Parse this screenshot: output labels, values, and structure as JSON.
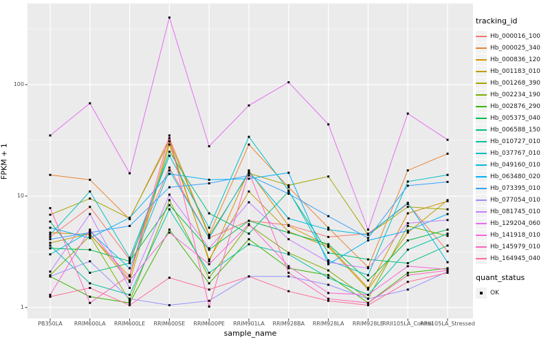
{
  "figure": {
    "background": "#ffffff",
    "y_axis": {
      "title": "FPKM + 1",
      "scale": "log10"
    },
    "x_axis": {
      "title": "sample_name"
    },
    "legend": {
      "tracking_title": "tracking_id",
      "quant_title": "quant_status",
      "quant_items": [
        {
          "label": "OK",
          "shape": "black-square"
        }
      ]
    }
  },
  "colors": {
    "panel_bg": "#EBEBEB",
    "grid": "#FFFFFF",
    "tick_mark": "#333333",
    "tick_text": "#4D4D4D",
    "axis_title": "#000000",
    "legend_key_bg": "#F2F2F2",
    "point": "#000000"
  },
  "chart_data": {
    "type": "line",
    "title": "",
    "xlabel": "sample_name",
    "ylabel": "FPKM + 1",
    "y_scale": "log10",
    "ylim": [
      0.8,
      535
    ],
    "grid": true,
    "legend_position": "right",
    "point_marker": "small black square (quant_status = OK) at every data point",
    "y_tick_labels": [
      "1",
      "10",
      "100"
    ],
    "y_tick_values": [
      1,
      10,
      100
    ],
    "y_minor_values": [
      3.1623,
      31.623,
      316.23
    ],
    "categories": [
      "PB350LA",
      "RRIM600LA",
      "RRIM600LE",
      "RRIM600SE",
      "RRIM600PE",
      "RRIM901LA",
      "RRIM928BA",
      "RRIM928LA",
      "RRIM928LE",
      "RRII105LA_Control",
      "RRII105LA_Stressed"
    ],
    "series": [
      {
        "name": "Hb_000016_100",
        "color": "#F8766D",
        "values": [
          4.3,
          8.0,
          2.7,
          18,
          4.2,
          6.0,
          5.5,
          4.3,
          4.6,
          8.5,
          3.2
        ]
      },
      {
        "name": "Hb_000025_340",
        "color": "#EA8331",
        "values": [
          15.5,
          14.0,
          6.2,
          33,
          4.5,
          29,
          12.0,
          5.2,
          2.3,
          17.0,
          24.0
        ]
      },
      {
        "name": "Hb_000836_120",
        "color": "#D89000",
        "values": [
          4.7,
          4.5,
          1.9,
          31,
          2.6,
          17.0,
          5.4,
          3.6,
          1.5,
          7.0,
          9.0
        ]
      },
      {
        "name": "Hb_001183_010",
        "color": "#C09B00",
        "values": [
          3.8,
          4.6,
          1.7,
          29,
          2.7,
          11.0,
          4.8,
          3.5,
          1.45,
          4.7,
          9.2
        ]
      },
      {
        "name": "Hb_001268_390",
        "color": "#A3A500",
        "values": [
          6.8,
          9.5,
          6.3,
          31,
          4.4,
          16.0,
          12.5,
          15.0,
          4.5,
          8.0,
          7.6
        ]
      },
      {
        "name": "Hb_002234_190",
        "color": "#7CAE00",
        "values": [
          1.95,
          4.4,
          1.15,
          9.2,
          1.85,
          5.5,
          3.1,
          2.15,
          1.2,
          5.4,
          4.4
        ]
      },
      {
        "name": "Hb_002876_290",
        "color": "#39B600",
        "values": [
          1.9,
          1.25,
          1.1,
          5.0,
          1.65,
          4.1,
          2.25,
          1.95,
          1.1,
          2.05,
          2.25
        ]
      },
      {
        "name": "Hb_005375_040",
        "color": "#00BB4E",
        "values": [
          3.4,
          3.3,
          2.6,
          8.3,
          3.3,
          6.0,
          4.7,
          3.7,
          1.75,
          4.0,
          5.0
        ]
      },
      {
        "name": "Hb_006588_150",
        "color": "#00BF7D",
        "values": [
          5.9,
          2.05,
          2.5,
          25,
          7.0,
          4.6,
          11.0,
          3.1,
          2.7,
          2.5,
          3.6
        ]
      },
      {
        "name": "Hb_010727_010",
        "color": "#00C1A3",
        "values": [
          3.6,
          1.65,
          1.3,
          7.6,
          2.05,
          3.7,
          3.0,
          1.85,
          1.3,
          3.3,
          4.6
        ]
      },
      {
        "name": "Hb_037767_010",
        "color": "#00BFC4",
        "values": [
          4.5,
          11.0,
          2.8,
          23,
          5.2,
          34,
          11.2,
          2.65,
          1.95,
          13.5,
          15.5
        ]
      },
      {
        "name": "Hb_049160_010",
        "color": "#00BAE0",
        "values": [
          3.0,
          4.8,
          2.25,
          17,
          4.2,
          16.5,
          6.3,
          5.0,
          4.5,
          8.7,
          2.55
        ]
      },
      {
        "name": "Hb_063480_020",
        "color": "#00B0F6",
        "values": [
          5.2,
          4.2,
          6.4,
          15.8,
          14.0,
          14.3,
          16.2,
          2.45,
          4.0,
          4.9,
          6.9
        ]
      },
      {
        "name": "Hb_073395_010",
        "color": "#35A2FF",
        "values": [
          4.1,
          4.7,
          5.4,
          12.0,
          13.0,
          15.3,
          10.5,
          6.6,
          4.2,
          12.4,
          13.4
        ]
      },
      {
        "name": "Hb_077054_010",
        "color": "#9590FF",
        "values": [
          1.9,
          2.6,
          1.2,
          1.05,
          1.15,
          1.9,
          1.9,
          1.6,
          1.2,
          1.45,
          2.1
        ]
      },
      {
        "name": "Hb_081745_010",
        "color": "#C77CFF",
        "values": [
          2.1,
          6.9,
          1.5,
          10.3,
          3.4,
          8.8,
          4.1,
          2.55,
          2.25,
          5.7,
          6.1
        ]
      },
      {
        "name": "Hb_129204_060",
        "color": "#E76BF3",
        "values": [
          35,
          68,
          16,
          400,
          28,
          65,
          105,
          44,
          5.0,
          55,
          32
        ]
      },
      {
        "name": "Hb_141918_010",
        "color": "#FA62DB",
        "values": [
          1.3,
          5.0,
          1.75,
          4.7,
          2.45,
          5.6,
          2.35,
          1.35,
          1.3,
          2.35,
          2.2
        ]
      },
      {
        "name": "Hb_145979_010",
        "color": "#FF62BC",
        "values": [
          7.8,
          1.1,
          1.95,
          35,
          1.02,
          16.5,
          2.05,
          1.2,
          1.1,
          1.95,
          2.15
        ]
      },
      {
        "name": "Hb_164945_040",
        "color": "#FF6A98",
        "values": [
          1.25,
          1.5,
          1.05,
          1.85,
          1.45,
          1.9,
          1.4,
          1.15,
          1.05,
          1.7,
          2.05
        ]
      }
    ]
  }
}
